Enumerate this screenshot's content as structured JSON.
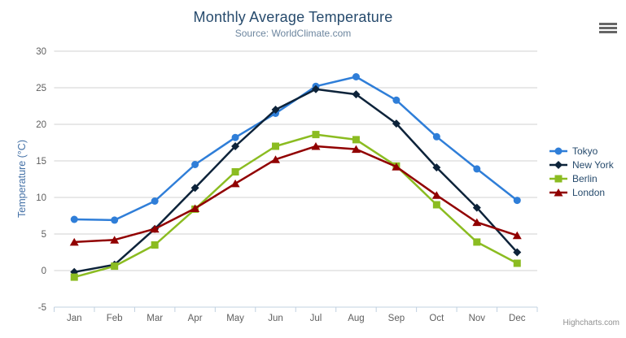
{
  "chart_data": {
    "type": "line",
    "title": "Monthly Average Temperature",
    "subtitle": "Source: WorldClimate.com",
    "xlabel": "",
    "ylabel": "Temperature (°C)",
    "ylim": [
      -5,
      30
    ],
    "ytick_interval": 5,
    "yticks": [
      30,
      25,
      20,
      15,
      10,
      5,
      0,
      -5
    ],
    "categories": [
      "Jan",
      "Feb",
      "Mar",
      "Apr",
      "May",
      "Jun",
      "Jul",
      "Aug",
      "Sep",
      "Oct",
      "Nov",
      "Dec"
    ],
    "series": [
      {
        "name": "Tokyo",
        "color": "#2f7ed8",
        "marker": "circle",
        "values": [
          7.0,
          6.9,
          9.5,
          14.5,
          18.2,
          21.5,
          25.2,
          26.5,
          23.3,
          18.3,
          13.9,
          9.6
        ]
      },
      {
        "name": "New York",
        "color": "#0d233a",
        "marker": "diamond",
        "values": [
          -0.2,
          0.8,
          5.7,
          11.3,
          17.0,
          22.0,
          24.8,
          24.1,
          20.1,
          14.1,
          8.6,
          2.5
        ]
      },
      {
        "name": "Berlin",
        "color": "#8bbc21",
        "marker": "square",
        "values": [
          -0.9,
          0.6,
          3.5,
          8.4,
          13.5,
          17.0,
          18.6,
          17.9,
          14.3,
          9.0,
          3.9,
          1.0
        ]
      },
      {
        "name": "London",
        "color": "#910000",
        "marker": "triangle",
        "values": [
          3.9,
          4.2,
          5.7,
          8.5,
          11.9,
          15.2,
          17.0,
          16.6,
          14.2,
          10.3,
          6.6,
          4.8
        ]
      }
    ],
    "legend_position": "right",
    "grid": true
  },
  "header": {
    "context_menu_icon": "hamburger-menu-icon"
  },
  "credit": {
    "label": "Highcharts.com"
  },
  "colors": {
    "title_text": "#274b6d",
    "subtitle_text": "#6d869f",
    "axis_label_text": "#606060",
    "y_axis_title_text": "#4572a7",
    "gridline": "#d0d0d0",
    "axis_line": "#c0d0e0",
    "legend_text": "#274b6d",
    "credit_text": "#909090",
    "menu_icon": "#666666"
  }
}
